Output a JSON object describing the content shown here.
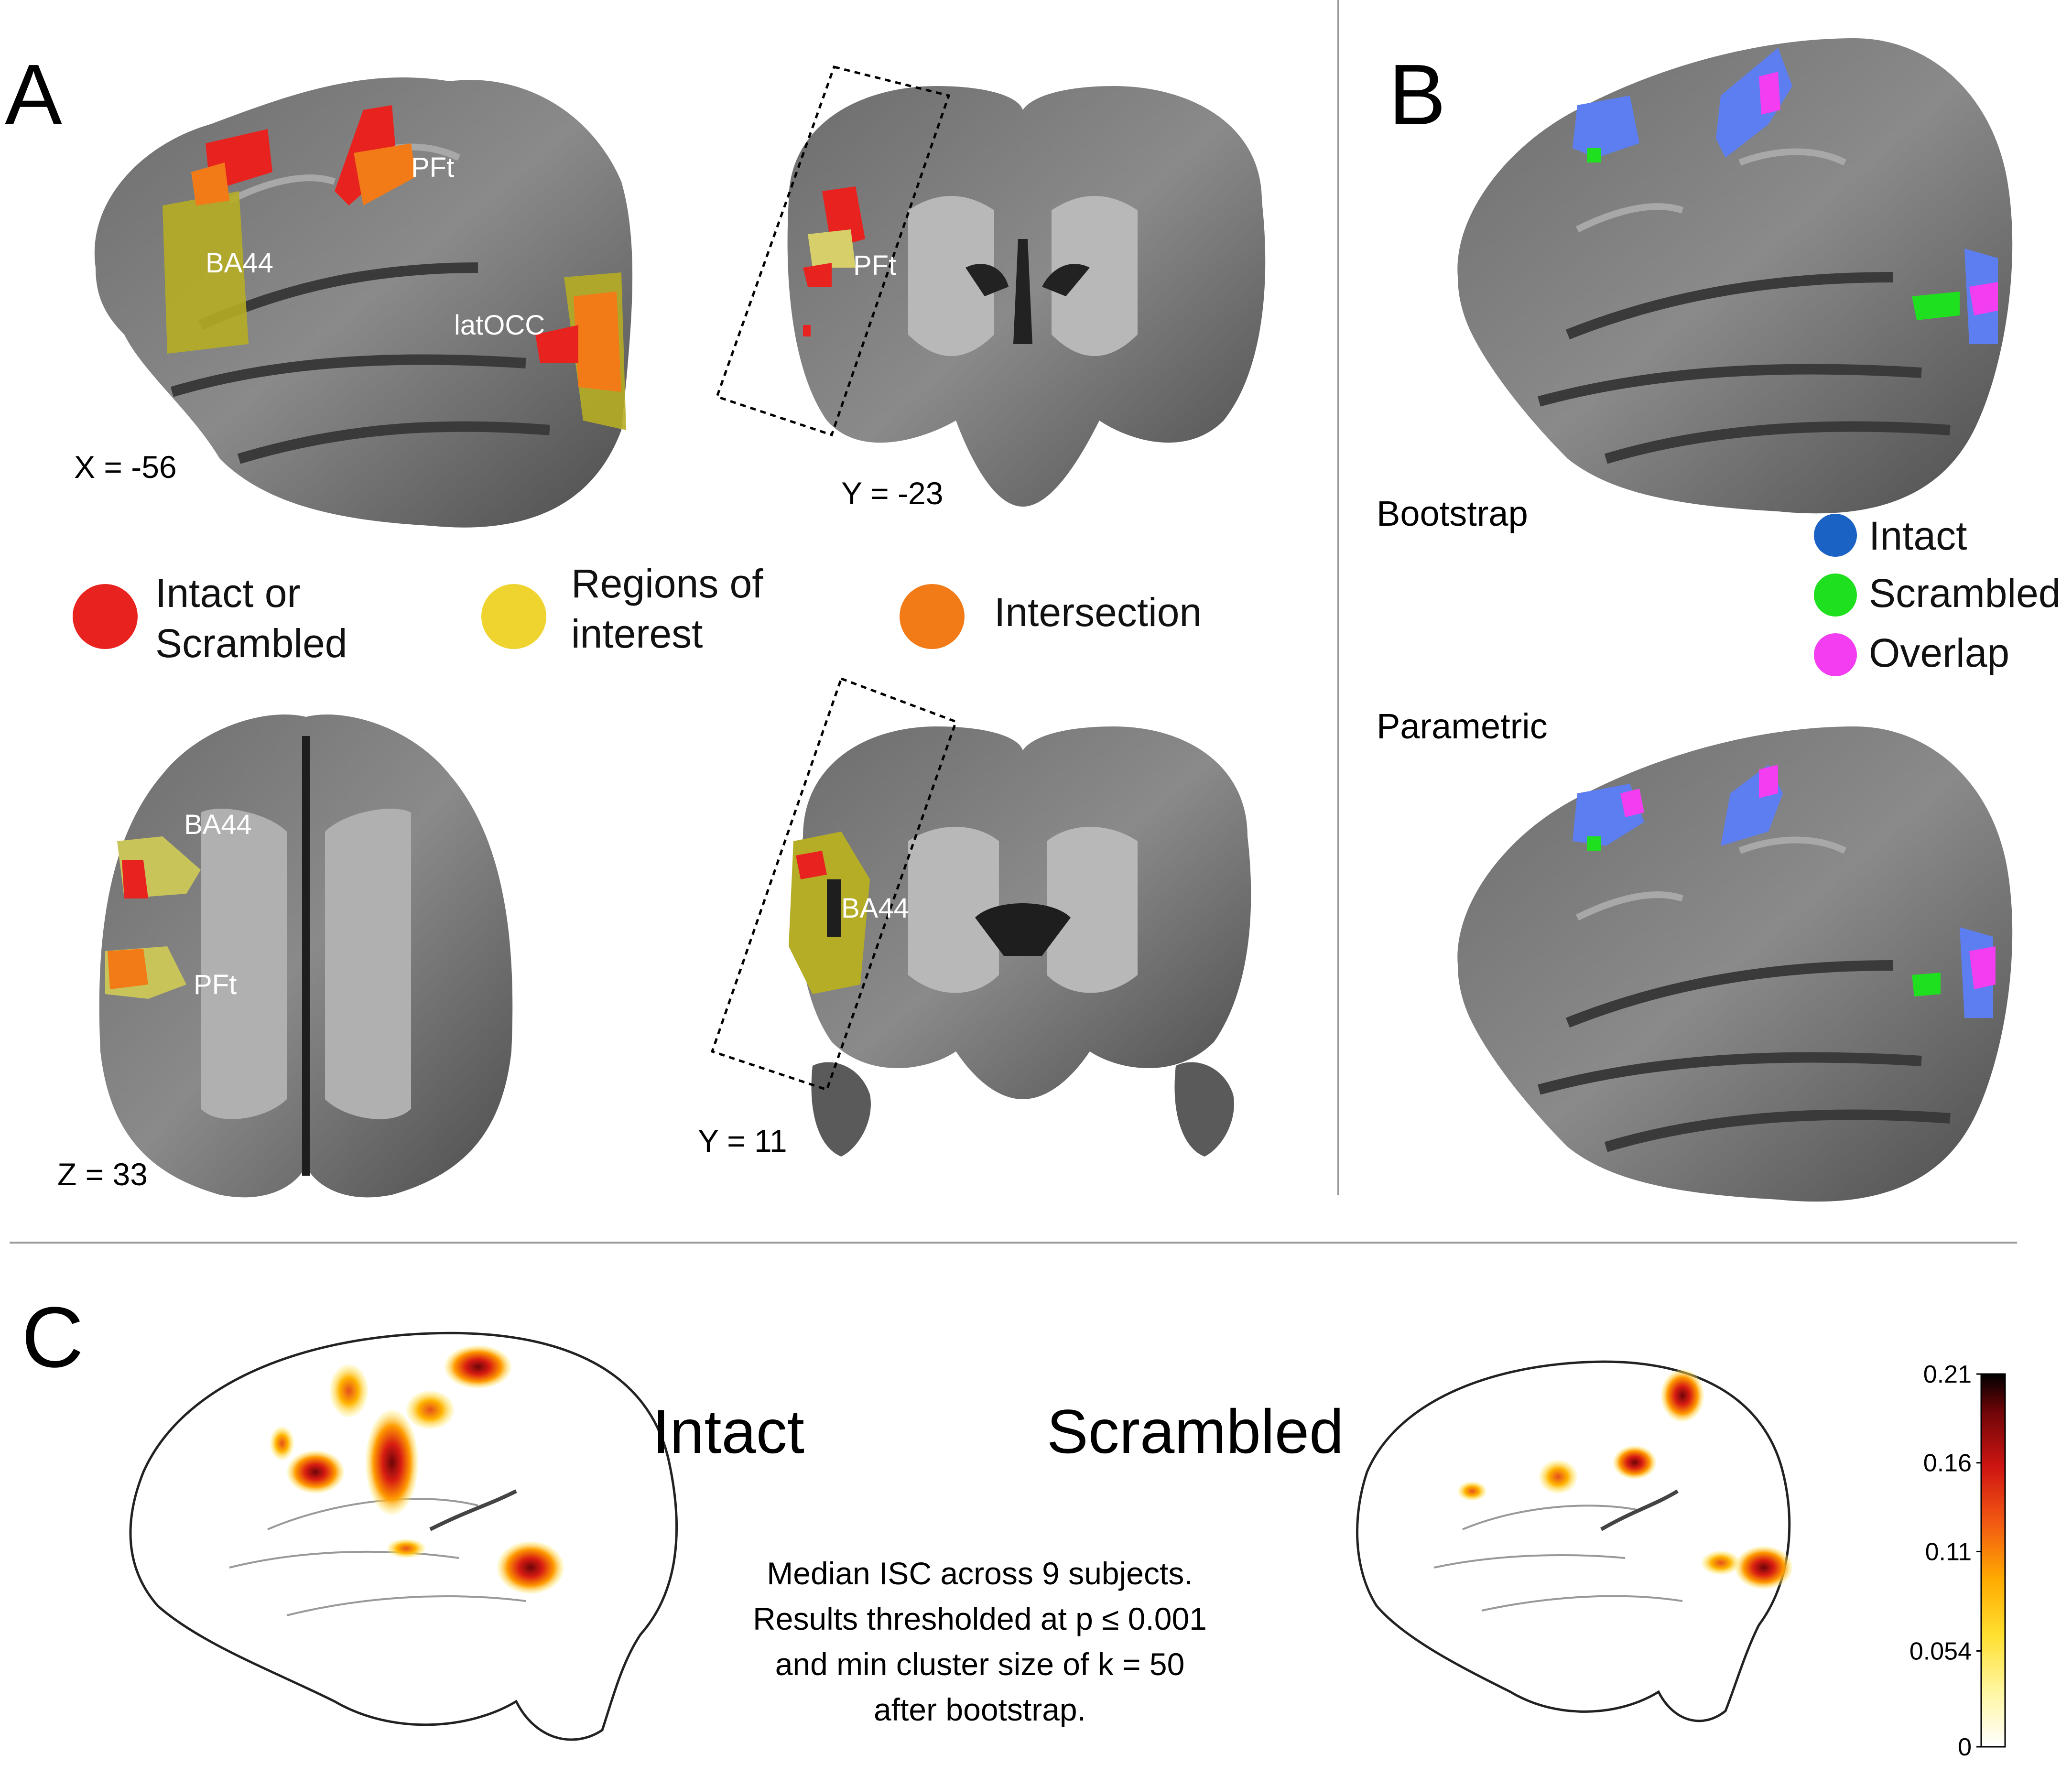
{
  "panels": {
    "A": {
      "letter": "A",
      "coords": {
        "sagittal": "X = -56",
        "coronal_top": "Y = -23",
        "axial": "Z = 33",
        "coronal_bottom": "Y = 11"
      },
      "labels": {
        "pft": "PFt",
        "ba44": "BA44",
        "latocc": "latOCC"
      },
      "legend": [
        {
          "line1": "Intact or",
          "line2": "Scrambled",
          "color": "#e8231f"
        },
        {
          "line1": "Regions of",
          "line2": "interest",
          "color": "#efd42f"
        },
        {
          "line1": "Intersection",
          "line2": "",
          "color": "#f27b18"
        }
      ]
    },
    "B": {
      "letter": "B",
      "methods": {
        "top": "Bootstrap",
        "bottom": "Parametric"
      },
      "legend": [
        {
          "label": "Intact",
          "color": "#1a62c4"
        },
        {
          "label": "Scrambled",
          "color": "#1fe01f"
        },
        {
          "label": "Overlap",
          "color": "#f23df0"
        }
      ]
    },
    "C": {
      "letter": "C",
      "conditions": {
        "left": "Intact",
        "right": "Scrambled"
      },
      "caption": [
        "Median ISC across 9 subjects.",
        "Results thresholded at p ≤ 0.001",
        "and min cluster size of k = 50",
        "after bootstrap."
      ],
      "colorbar": {
        "ticks": [
          "0.21",
          "0.16",
          "0.11",
          "0.054",
          "0"
        ],
        "min": 0,
        "max": 0.21,
        "colors": [
          "#ffffff",
          "#fff176",
          "#ffd000",
          "#ff9b00",
          "#f04a14",
          "#c00d12",
          "#6e0508",
          "#000000"
        ]
      }
    }
  }
}
